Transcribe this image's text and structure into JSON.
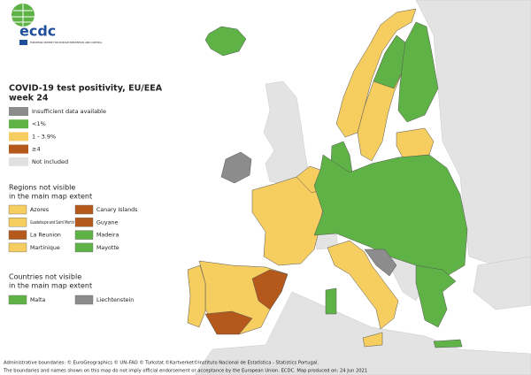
{
  "logo": {
    "name": "ecdc",
    "tagline": "EUROPEAN CENTRE FOR DISEASE PREVENTION AND CONTROL"
  },
  "title": [
    "COVID-19 test positivity, EU/EEA",
    "week 24"
  ],
  "legend": [
    {
      "label": "Insufficient data available",
      "color": "#8c8c8c"
    },
    {
      "label": "<1%",
      "color": "#5fb346"
    },
    {
      "label": "1 - 3.9%",
      "color": "#f6cd5f"
    },
    {
      "label": "≥4",
      "color": "#b5581c"
    },
    {
      "label": "Not included",
      "color": "#e0e0e0"
    }
  ],
  "regions_heading": [
    "Regions not visible",
    "in the main map extent"
  ],
  "regions": [
    {
      "label": "Azores",
      "color": "#f6cd5f"
    },
    {
      "label": "Canary Islands",
      "color": "#b5581c"
    },
    {
      "label": "Guadeloupe and Saint Martin",
      "color": "#f6cd5f"
    },
    {
      "label": "Guyane",
      "color": "#b5581c"
    },
    {
      "label": "La Reunion",
      "color": "#b5581c"
    },
    {
      "label": "Madeira",
      "color": "#5fb346"
    },
    {
      "label": "Martinique",
      "color": "#f6cd5f"
    },
    {
      "label": "Mayotte",
      "color": "#5fb346"
    }
  ],
  "countries_heading": [
    "Countries not visible",
    "in the main map extent"
  ],
  "countries": [
    {
      "label": "Malta",
      "color": "#5fb346"
    },
    {
      "label": "Liechtenstein",
      "color": "#8c8c8c"
    }
  ],
  "footer": [
    "Administrative boundaries: © EuroGeographics © UN–FAO © Turkstat.©Kartverket©Instituto Nacional de Estatística - Statistics Portugal.",
    "The boundaries and names shown on this map do not imply official endorsement or acceptance by the European Union. ECDC. Map produced on: 24 Jun 2021"
  ]
}
